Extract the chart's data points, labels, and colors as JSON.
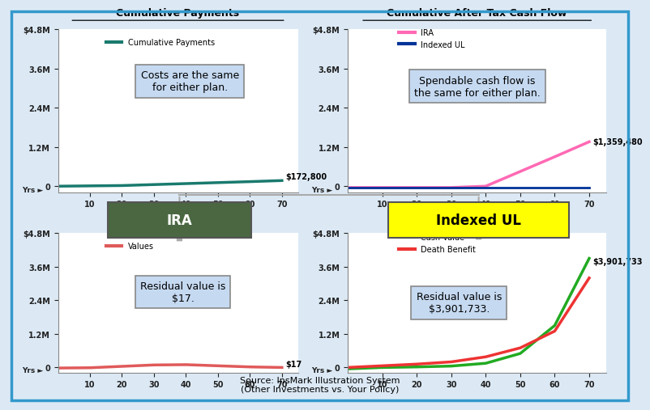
{
  "bg_color": "#dce9f5",
  "border_color": "#3399cc",
  "top_left": {
    "title": "Cumulative Payments",
    "legend_label": "Cumulative Payments",
    "legend_color": "#1a7a6e",
    "line_color": "#1a7a6e",
    "x": [
      0,
      10,
      20,
      30,
      40,
      50,
      60,
      70
    ],
    "y": [
      0,
      0.01,
      0.02,
      0.05,
      0.08,
      0.11,
      0.14,
      0.1728
    ],
    "yticks": [
      0,
      1.2,
      2.4,
      3.6,
      4.8
    ],
    "ytick_labels": [
      "0",
      "1.2M",
      "2.4M",
      "3.6M",
      "$4.8M"
    ],
    "annotation": "$172,800",
    "box_text": "Costs are the same\nfor either plan."
  },
  "top_right": {
    "title": "Cumulative After Tax Cash Flow",
    "legend_ira_label": "IRA",
    "legend_ira_color": "#ff69b4",
    "legend_ul_label": "Indexed UL",
    "legend_ul_color": "#003399",
    "ira_x": [
      0,
      10,
      20,
      30,
      40,
      50,
      60,
      70
    ],
    "ira_y": [
      -0.04,
      -0.04,
      -0.04,
      -0.04,
      0.0,
      0.45,
      0.9,
      1.3595
    ],
    "ul_x": [
      0,
      10,
      20,
      30,
      40,
      70
    ],
    "ul_y": [
      -0.04,
      -0.04,
      -0.04,
      -0.04,
      -0.04,
      -0.04
    ],
    "yticks": [
      0,
      1.2,
      2.4,
      3.6,
      4.8
    ],
    "ytick_labels": [
      "0",
      "1.2M",
      "2.4M",
      "3.6M",
      "$4.8M"
    ],
    "annotation": "$1,359,480",
    "box_text": "Spendable cash flow is\nthe same for either plan."
  },
  "bottom_left": {
    "legend_label": "Values",
    "legend_color": "#e05a5a",
    "line_color": "#e05a5a",
    "x": [
      0,
      10,
      20,
      30,
      40,
      50,
      60,
      70
    ],
    "y": [
      -0.02,
      -0.01,
      0.04,
      0.09,
      0.1,
      0.06,
      0.02,
      1.7e-05
    ],
    "yticks": [
      0,
      1.2,
      2.4,
      3.6,
      4.8
    ],
    "ytick_labels": [
      "0",
      "1.2M",
      "2.4M",
      "3.6M",
      "$4.8M"
    ],
    "annotation": "$17",
    "box_text": "Residual value is\n$17.",
    "ira_box_color": "#4a6741",
    "ira_box_text": "IRA",
    "ira_box_text_color": "#ffffff"
  },
  "bottom_right": {
    "cash_label": "Cash Value",
    "cash_color": "#22aa22",
    "death_label": "Death Benefit",
    "death_color": "#ee3333",
    "cash_x": [
      0,
      10,
      20,
      30,
      40,
      50,
      60,
      70
    ],
    "cash_y": [
      -0.05,
      0.0,
      0.02,
      0.05,
      0.15,
      0.5,
      1.5,
      3.9017
    ],
    "death_x": [
      0,
      10,
      20,
      30,
      40,
      50,
      60,
      70
    ],
    "death_y": [
      0.0,
      0.06,
      0.12,
      0.2,
      0.38,
      0.7,
      1.3,
      3.2
    ],
    "yticks": [
      0,
      1.2,
      2.4,
      3.6,
      4.8
    ],
    "ytick_labels": [
      "0",
      "1.2M",
      "2.4M",
      "3.6M",
      "$4.8M"
    ],
    "annotation": "$3,901,733",
    "box_text": "Residual value is\n$3,901,733.",
    "ul_box_color": "#ffff00",
    "ul_box_text": "Indexed UL",
    "ul_box_text_color": "#000000"
  },
  "source_text": "Source: InsMark Illustration System\n(Other Investments vs. Your Policy)",
  "xtick_labels": [
    "10",
    "20",
    "30",
    "40",
    "50",
    "60",
    "70"
  ],
  "xtick_vals": [
    10,
    20,
    30,
    40,
    50,
    60,
    70
  ],
  "ylim": [
    -0.18,
    4.8
  ],
  "xlim": [
    0,
    75
  ],
  "arrow_color": "#aaaaaa"
}
